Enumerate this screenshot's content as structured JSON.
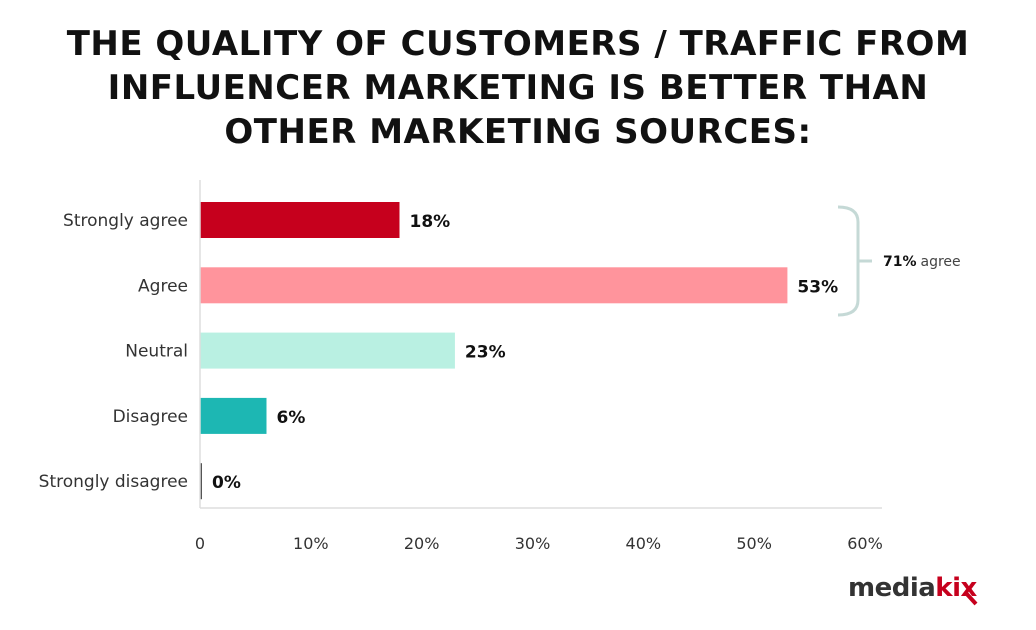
{
  "chart_data": {
    "type": "bar",
    "orientation": "horizontal",
    "title_lines": [
      "THE QUALITY OF CUSTOMERS / TRAFFIC FROM",
      "INFLUENCER MARKETING IS BETTER THAN",
      "OTHER MARKETING SOURCES:"
    ],
    "categories": [
      "Strongly agree",
      "Agree",
      "Neutral",
      "Disagree",
      "Strongly disagree"
    ],
    "values": [
      18,
      53,
      23,
      6,
      0
    ],
    "data_labels": [
      "18%",
      "53%",
      "23%",
      "6%",
      "0%"
    ],
    "colors": [
      "#c6001d",
      "#ff949c",
      "#b9f0e2",
      "#1db7b3",
      "#555555"
    ],
    "xlim": [
      0,
      60
    ],
    "xticks": [
      0,
      10,
      20,
      30,
      40,
      50,
      60
    ],
    "xtick_labels": [
      "0",
      "10%",
      "20%",
      "30%",
      "40%",
      "50%",
      "60%"
    ],
    "xlabel": "",
    "ylabel": "",
    "grid": false,
    "annotation": {
      "value": "71%",
      "text": "agree",
      "bracket_color": "#c5d9d6",
      "spans": [
        "Strongly agree",
        "Agree"
      ]
    }
  },
  "logo": {
    "text_dark": "media",
    "text_accent": "kix",
    "accent_color": "#c6001d"
  }
}
